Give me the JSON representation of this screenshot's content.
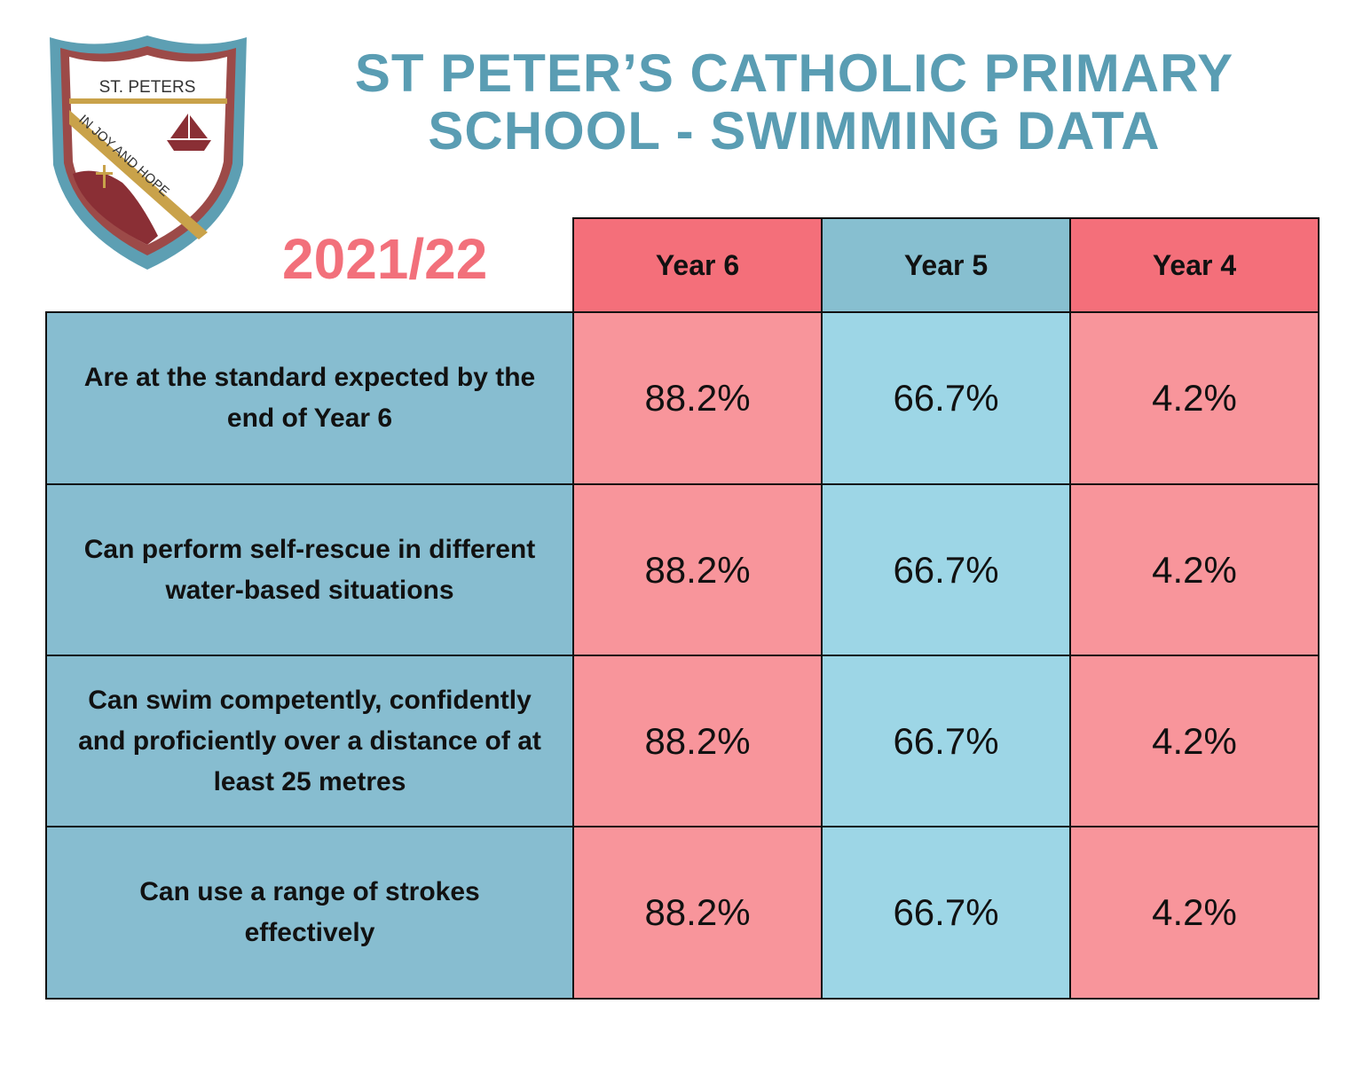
{
  "logo": {
    "name": "ST. PETERS",
    "motto": "IN JOY AND HOPE"
  },
  "title": [
    "ST PETER’S CATHOLIC PRIMARY",
    "SCHOOL - SWIMMING DATA"
  ],
  "year": "2021/22",
  "table": {
    "columns": [
      "Year 6",
      "Year 5",
      "Year 4"
    ],
    "rows": [
      {
        "label": "Are at the standard expected by the end of Year 6",
        "cells": [
          "88.2%",
          "66.7%",
          "4.2%"
        ]
      },
      {
        "label": "Can perform self-rescue in different water-based situations",
        "cells": [
          "88.2%",
          "66.7%",
          "4.2%"
        ]
      },
      {
        "label": "Can swim competently, confidently and proficiently over a distance of at least 25 metres",
        "cells": [
          "88.2%",
          "66.7%",
          "4.2%"
        ]
      },
      {
        "label": "Can use a range of strokes effectively",
        "cells": [
          "88.2%",
          "66.7%",
          "4.2%"
        ]
      }
    ]
  }
}
